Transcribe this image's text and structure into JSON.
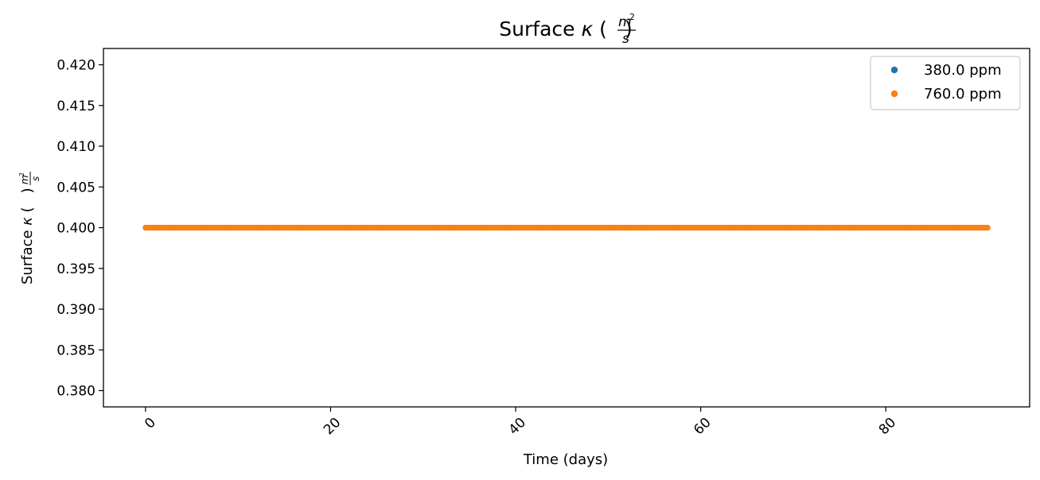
{
  "chart_data": {
    "type": "scatter",
    "title": "Surface κ (m²/s)",
    "title_parts": {
      "prefix": "Surface ",
      "kappa": "κ",
      "open": " (",
      "num": "m",
      "sup": "2",
      "den": "s",
      "close": ")"
    },
    "xlabel": "Time (days)",
    "ylabel": "Surface κ (m²/s)",
    "ylabel_parts": {
      "prefix": "Surface ",
      "kappa": "κ",
      "open": " (",
      "num": "m",
      "sup": "2",
      "den": "s",
      "close": ")"
    },
    "xlim": [
      -4.55,
      95.55
    ],
    "ylim": [
      0.378,
      0.422
    ],
    "x_ticks": [
      0,
      20,
      40,
      60,
      80
    ],
    "x_tick_labels": [
      "0",
      "20",
      "40",
      "60",
      "80"
    ],
    "y_ticks": [
      0.38,
      0.385,
      0.39,
      0.395,
      0.4,
      0.405,
      0.41,
      0.415,
      0.42
    ],
    "y_tick_labels": [
      "0.380",
      "0.385",
      "0.390",
      "0.395",
      "0.400",
      "0.405",
      "0.410",
      "0.415",
      "0.420"
    ],
    "x_tick_rotation_deg": 45,
    "grid": false,
    "legend_position": "top-right",
    "x_range": {
      "start": 0,
      "end": 91,
      "step": 0.25
    },
    "series": [
      {
        "name": "380.0 ppm",
        "color": "#1f77b4",
        "y_constant": 0.4
      },
      {
        "name": "760.0 ppm",
        "color": "#ff7f0e",
        "y_constant": 0.4
      }
    ]
  }
}
